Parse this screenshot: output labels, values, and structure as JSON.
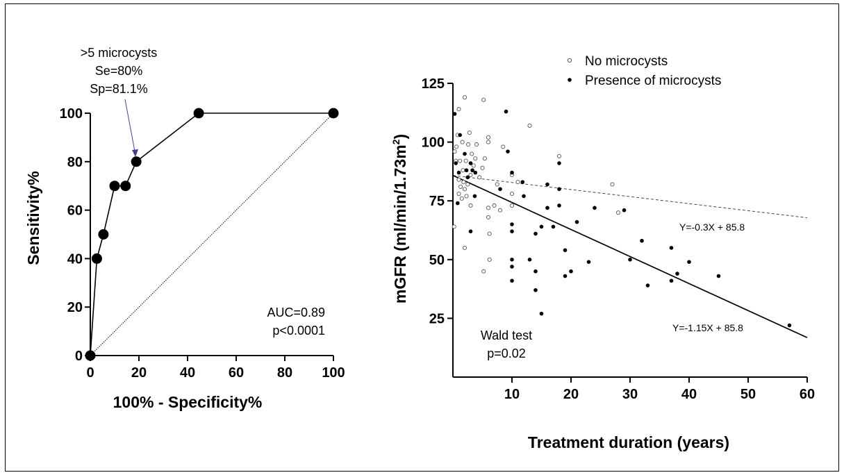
{
  "chart_data": [
    {
      "type": "line",
      "xlabel": "100% - Specificity%",
      "ylabel": "Sensitivity%",
      "xlim": [
        0,
        100
      ],
      "ylim": [
        0,
        100
      ],
      "xticks": [
        "0",
        "20",
        "40",
        "60",
        "80",
        "100"
      ],
      "yticks": [
        "0",
        "20",
        "40",
        "60",
        "80",
        "100"
      ],
      "series": [
        {
          "x": [
            0,
            2.7,
            5.4,
            10,
            14.5,
            18.9,
            44.6,
            100
          ],
          "y": [
            0,
            40,
            50,
            70,
            70,
            80,
            100,
            100
          ]
        }
      ],
      "reference_line": {
        "x": [
          0,
          100
        ],
        "y": [
          0,
          100
        ]
      },
      "annotation": {
        "lines": [
          ">5 microcysts",
          "Se=80%",
          "Sp=81.1%"
        ],
        "point": [
          18.9,
          80
        ]
      },
      "auc_text": "AUC=0.89",
      "p_text": "p<0.0001",
      "grid": false
    },
    {
      "type": "scatter",
      "xlabel": "Treatment duration (years)",
      "ylabel": "mGFR (ml/min/1.73m",
      "ylabel_sup": "2",
      "ylabel_close": ")",
      "xlim": [
        0,
        60
      ],
      "ylim": [
        0,
        125
      ],
      "xticks": [
        "10",
        "20",
        "30",
        "40",
        "50",
        "60"
      ],
      "yticks": [
        "25",
        "50",
        "75",
        "100",
        "125"
      ],
      "legend": [
        "No microcysts",
        "Presence of microcysts"
      ],
      "legend_position": "top",
      "series": [
        {
          "name": "No microcysts",
          "marker": "open-circle",
          "points": [
            [
              0.2,
              64
            ],
            [
              0.3,
              96
            ],
            [
              0.5,
              92
            ],
            [
              0.6,
              98
            ],
            [
              0.8,
              103
            ],
            [
              1,
              114
            ],
            [
              1,
              84
            ],
            [
              1,
              78
            ],
            [
              1.2,
              92
            ],
            [
              1.3,
              81
            ],
            [
              1.5,
              76
            ],
            [
              1.6,
              100
            ],
            [
              1.7,
              88
            ],
            [
              1.8,
              83
            ],
            [
              2,
              119
            ],
            [
              2,
              55
            ],
            [
              2,
              80
            ],
            [
              2.2,
              92
            ],
            [
              2.3,
              77
            ],
            [
              2.5,
              82
            ],
            [
              2.6,
              99
            ],
            [
              2.8,
              104
            ],
            [
              3,
              73
            ],
            [
              3,
              86
            ],
            [
              3.2,
              95
            ],
            [
              3.5,
              90
            ],
            [
              3.8,
              93
            ],
            [
              4,
              99
            ],
            [
              4.5,
              85
            ],
            [
              5,
              89
            ],
            [
              5.2,
              118
            ],
            [
              5.4,
              93
            ],
            [
              5.2,
              45
            ],
            [
              6,
              102
            ],
            [
              6,
              100
            ],
            [
              6,
              72
            ],
            [
              6,
              68
            ],
            [
              6.2,
              61
            ],
            [
              6.2,
              50
            ],
            [
              7,
              73
            ],
            [
              7.5,
              82
            ],
            [
              8,
              71
            ],
            [
              8.5,
              98
            ],
            [
              10,
              86
            ],
            [
              10,
              78
            ],
            [
              10,
              73
            ],
            [
              11,
              83
            ],
            [
              13,
              107
            ],
            [
              18,
              94
            ],
            [
              27,
              82
            ],
            [
              28,
              70
            ]
          ]
        },
        {
          "name": "Presence of microcysts",
          "marker": "filled-circle",
          "points": [
            [
              0.3,
              112
            ],
            [
              0.5,
              91
            ],
            [
              0.8,
              74
            ],
            [
              1,
              87
            ],
            [
              1.2,
              103
            ],
            [
              2,
              95
            ],
            [
              2.3,
              88
            ],
            [
              2.5,
              85
            ],
            [
              3,
              91
            ],
            [
              3,
              62
            ],
            [
              3.3,
              88
            ],
            [
              3.7,
              77
            ],
            [
              3.8,
              87
            ],
            [
              8,
              80
            ],
            [
              9,
              113
            ],
            [
              9.3,
              96
            ],
            [
              10,
              87
            ],
            [
              10,
              65
            ],
            [
              10,
              62
            ],
            [
              10,
              50
            ],
            [
              10,
              47
            ],
            [
              10,
              41
            ],
            [
              11.8,
              83
            ],
            [
              12,
              77
            ],
            [
              13,
              50
            ],
            [
              14,
              61
            ],
            [
              14,
              45
            ],
            [
              14,
              37
            ],
            [
              15,
              64
            ],
            [
              15,
              27
            ],
            [
              16,
              82
            ],
            [
              16,
              72
            ],
            [
              17,
              64
            ],
            [
              18,
              91
            ],
            [
              18,
              80
            ],
            [
              18,
              73
            ],
            [
              19,
              54
            ],
            [
              19,
              43
            ],
            [
              20,
              45
            ],
            [
              21,
              66
            ],
            [
              23,
              49
            ],
            [
              24,
              72
            ],
            [
              29,
              71
            ],
            [
              30,
              50
            ],
            [
              32,
              58
            ],
            [
              33,
              39
            ],
            [
              37,
              55
            ],
            [
              37,
              41
            ],
            [
              38,
              44
            ],
            [
              40,
              49
            ],
            [
              45,
              43
            ],
            [
              57,
              22
            ]
          ]
        }
      ],
      "trend_lines": [
        {
          "slope": -0.3,
          "intercept": 85.8,
          "style": "dashed",
          "label": "Y=-0.3X + 85.8"
        },
        {
          "slope": -1.15,
          "intercept": 85.8,
          "style": "solid",
          "label": "Y=-1.15X + 85.8"
        }
      ],
      "test_label": "Wald test",
      "test_p": "p=0.02",
      "grid": false
    }
  ]
}
